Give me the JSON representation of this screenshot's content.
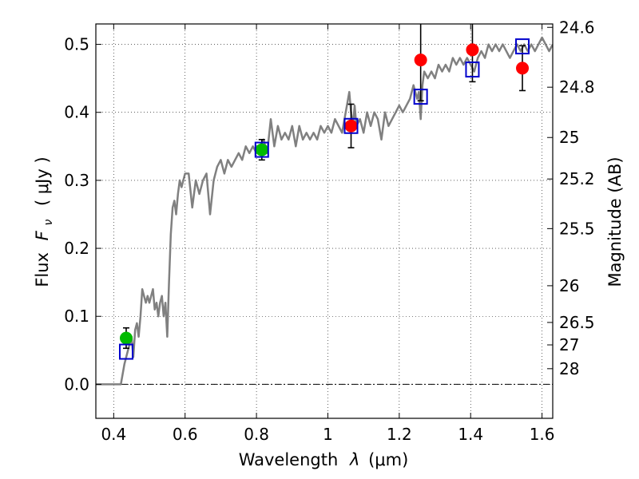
{
  "chart_data": {
    "type": "scatter",
    "xlabel": "Wavelength  λ (μm)",
    "ylabel": "Flux  F_ν  ( μJy )",
    "ylabel_parts": {
      "flux": "Flux",
      "F": "F",
      "nu": "ν",
      "units": "( μJy )"
    },
    "xlabel_parts": {
      "wavelength": "Wavelength",
      "lambda": "λ",
      "units": "(μm)"
    },
    "y2label": "Magnitude (AB)",
    "xlim": [
      0.35,
      1.63
    ],
    "ylim": [
      -0.05,
      0.53
    ],
    "grid": true,
    "x_ticks": [
      0.4,
      0.6,
      0.8,
      1.0,
      1.2,
      1.4,
      1.6
    ],
    "x_tick_labels": [
      "0.4",
      "0.6",
      "0.8",
      "1",
      "1.2",
      "1.4",
      "1.6"
    ],
    "y_ticks": [
      0.0,
      0.1,
      0.2,
      0.3,
      0.4,
      0.5
    ],
    "y_tick_labels": [
      "0.0",
      "0.1",
      "0.2",
      "0.3",
      "0.4",
      "0.5"
    ],
    "mag_ticks": [
      {
        "label": "24.6",
        "flux": 0.525
      },
      {
        "label": "24.8",
        "flux": 0.437
      },
      {
        "label": "25",
        "flux": 0.363
      },
      {
        "label": "25.2",
        "flux": 0.302
      },
      {
        "label": "25.5",
        "flux": 0.229
      },
      {
        "label": "26",
        "flux": 0.145
      },
      {
        "label": "26.5",
        "flux": 0.091
      },
      {
        "label": "27",
        "flux": 0.058
      },
      {
        "label": "28",
        "flux": 0.023
      }
    ],
    "series": [
      {
        "name": "model spectrum",
        "kind": "line",
        "color": "#808080",
        "x": [
          0.35,
          0.4,
          0.41,
          0.42,
          0.43,
          0.44,
          0.445,
          0.45,
          0.455,
          0.46,
          0.465,
          0.47,
          0.475,
          0.48,
          0.485,
          0.49,
          0.495,
          0.5,
          0.505,
          0.51,
          0.515,
          0.52,
          0.525,
          0.53,
          0.535,
          0.54,
          0.545,
          0.55,
          0.555,
          0.56,
          0.565,
          0.57,
          0.575,
          0.58,
          0.585,
          0.59,
          0.6,
          0.61,
          0.62,
          0.63,
          0.64,
          0.65,
          0.66,
          0.67,
          0.68,
          0.69,
          0.7,
          0.71,
          0.72,
          0.73,
          0.74,
          0.75,
          0.76,
          0.77,
          0.78,
          0.79,
          0.8,
          0.81,
          0.82,
          0.83,
          0.84,
          0.85,
          0.86,
          0.87,
          0.88,
          0.89,
          0.9,
          0.91,
          0.92,
          0.93,
          0.94,
          0.95,
          0.96,
          0.97,
          0.98,
          0.99,
          1.0,
          1.01,
          1.02,
          1.03,
          1.04,
          1.05,
          1.06,
          1.065,
          1.07,
          1.075,
          1.08,
          1.09,
          1.1,
          1.11,
          1.12,
          1.13,
          1.14,
          1.15,
          1.16,
          1.17,
          1.18,
          1.19,
          1.2,
          1.21,
          1.22,
          1.23,
          1.24,
          1.25,
          1.255,
          1.26,
          1.265,
          1.27,
          1.28,
          1.29,
          1.3,
          1.31,
          1.32,
          1.33,
          1.34,
          1.35,
          1.36,
          1.37,
          1.38,
          1.39,
          1.4,
          1.41,
          1.42,
          1.43,
          1.44,
          1.45,
          1.46,
          1.47,
          1.48,
          1.49,
          1.5,
          1.51,
          1.52,
          1.53,
          1.54,
          1.55,
          1.56,
          1.57,
          1.58,
          1.59,
          1.6,
          1.61,
          1.62,
          1.63
        ],
        "y": [
          0.0,
          0.0,
          0.0,
          0.0,
          0.03,
          0.05,
          0.06,
          0.07,
          0.04,
          0.08,
          0.09,
          0.07,
          0.1,
          0.14,
          0.13,
          0.12,
          0.13,
          0.12,
          0.13,
          0.14,
          0.11,
          0.12,
          0.1,
          0.12,
          0.13,
          0.1,
          0.12,
          0.07,
          0.15,
          0.22,
          0.26,
          0.27,
          0.25,
          0.28,
          0.3,
          0.29,
          0.31,
          0.31,
          0.26,
          0.3,
          0.28,
          0.3,
          0.31,
          0.25,
          0.3,
          0.32,
          0.33,
          0.31,
          0.33,
          0.32,
          0.33,
          0.34,
          0.33,
          0.35,
          0.34,
          0.35,
          0.34,
          0.35,
          0.36,
          0.34,
          0.39,
          0.35,
          0.38,
          0.36,
          0.37,
          0.36,
          0.38,
          0.35,
          0.38,
          0.36,
          0.37,
          0.36,
          0.37,
          0.36,
          0.38,
          0.37,
          0.38,
          0.37,
          0.39,
          0.38,
          0.37,
          0.4,
          0.43,
          0.4,
          0.38,
          0.41,
          0.38,
          0.39,
          0.37,
          0.4,
          0.38,
          0.4,
          0.39,
          0.36,
          0.4,
          0.38,
          0.39,
          0.4,
          0.41,
          0.4,
          0.41,
          0.42,
          0.44,
          0.42,
          0.43,
          0.39,
          0.44,
          0.46,
          0.45,
          0.46,
          0.45,
          0.47,
          0.46,
          0.47,
          0.46,
          0.48,
          0.47,
          0.48,
          0.47,
          0.48,
          0.47,
          0.46,
          0.48,
          0.49,
          0.48,
          0.5,
          0.49,
          0.5,
          0.49,
          0.5,
          0.49,
          0.48,
          0.49,
          0.5,
          0.49,
          0.5,
          0.49,
          0.5,
          0.49,
          0.5,
          0.51,
          0.5,
          0.49,
          0.5
        ]
      },
      {
        "name": "model photometry",
        "kind": "open-square",
        "color": "#0000cc",
        "x": [
          0.435,
          0.815,
          1.065,
          1.26,
          1.405,
          1.545
        ],
        "y": [
          0.048,
          0.345,
          0.38,
          0.423,
          0.463,
          0.497
        ]
      },
      {
        "name": "observed (green)",
        "kind": "filled-circle",
        "color": "#00bb00",
        "x": [
          0.435,
          0.815
        ],
        "y": [
          0.068,
          0.345
        ],
        "err": [
          0.015,
          0.015
        ]
      },
      {
        "name": "observed (red)",
        "kind": "filled-circle",
        "color": "#ff0000",
        "x": [
          1.065,
          1.26,
          1.405,
          1.545
        ],
        "y": [
          0.38,
          0.477,
          0.492,
          0.465
        ],
        "err": [
          0.032,
          0.06,
          0.047,
          0.033
        ]
      }
    ]
  }
}
